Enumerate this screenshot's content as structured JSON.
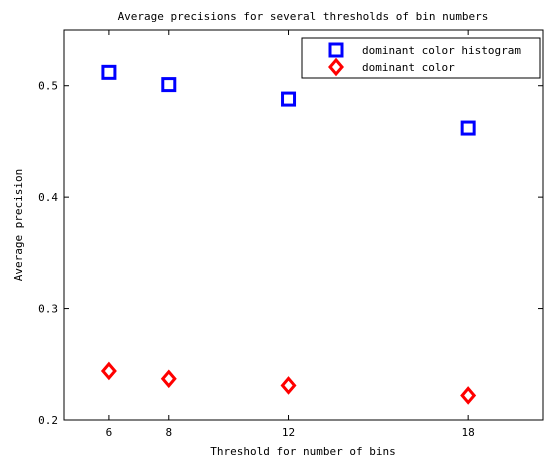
{
  "chart_data": {
    "type": "scatter",
    "title": "Average precisions for several thresholds of bin numbers",
    "xlabel": "Threshold for number of bins",
    "ylabel": "Average precision",
    "xlim": [
      4.5,
      20.5
    ],
    "ylim": [
      0.2,
      0.55
    ],
    "xticks": [
      6,
      8,
      12,
      18
    ],
    "xtick_labels": [
      "6",
      "8",
      "12",
      "18"
    ],
    "yticks": [
      0.2,
      0.3,
      0.4,
      0.5
    ],
    "ytick_labels": [
      "0.2",
      "0.3",
      "0.4",
      "0.5"
    ],
    "grid": false,
    "legend_position": "top-right",
    "series": [
      {
        "name": "dominant color histogram",
        "marker": "square",
        "color": "#0000ff",
        "x": [
          6,
          8,
          12,
          18
        ],
        "y": [
          0.512,
          0.501,
          0.488,
          0.462
        ]
      },
      {
        "name": "dominant color",
        "marker": "diamond",
        "color": "#ff0000",
        "x": [
          6,
          8,
          12,
          18
        ],
        "y": [
          0.244,
          0.237,
          0.231,
          0.222
        ]
      }
    ]
  }
}
